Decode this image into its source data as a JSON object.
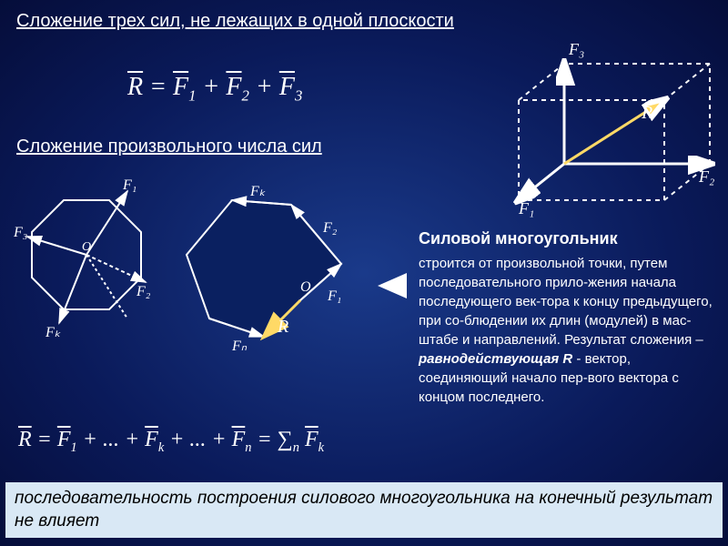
{
  "heading1": "Сложение трех сил, не лежащих в одной плоскости",
  "heading2": "Сложение произвольного числа сил",
  "formula1_html": "<span class='overline'>R</span> = <span class='overline'>F</span><span class='sub'>1</span> + <span class='overline'>F</span><span class='sub'>2</span> + <span class='overline'>F</span><span class='sub'>3</span>",
  "formula2_html": "<span class='overline'>R</span> = <span class='overline'>F</span><span class='sub'>1</span> + ... + <span class='overline'>F</span><span class='sub'>k</span> + ... + <span class='overline'>F</span><span class='sub'>n</span> = &sum;<span class='sub'>n</span> <span class='overline'>F</span><span class='sub'>k</span>",
  "body": {
    "title": "Силовой многоугольник",
    "text": "строится от произвольной точки, путем последовательного прило-жения начала последующего век-тора к концу предыдущего, при со-блюдении их длин (модулей) в мас-штабе и направлений. Результат сложения – <b><i>равнодействующая R</i></b> - вектор, соединяющий начало пер-вого вектора с концом последнего."
  },
  "footer": "последовательность построения силового многоугольника на конечный результат не влияет",
  "cube": {
    "labels": {
      "F1": "F₁",
      "F2": "F₂",
      "F3": "F₃",
      "R": "R"
    },
    "colors": {
      "solid": "#ffffff",
      "dashed": "#ffffff",
      "R": "#ffd966"
    }
  },
  "octagon": {
    "labels": [
      "F₁",
      "F₂",
      "F₃",
      "Fₖ"
    ],
    "center": "O",
    "stroke": "#ffffff"
  },
  "polygon": {
    "labels": [
      "F₁",
      "F₂",
      "Fₖ",
      "Fₙ",
      "R"
    ],
    "center": "O",
    "fill": "#0a2060",
    "stroke": "#ffffff",
    "R_color": "#ffd966"
  },
  "style": {
    "bg_center": "#1a3a8a",
    "bg_edge": "#050d3a",
    "heading_fontsize": 20,
    "formula_fontsize": 28,
    "body_fontsize": 15,
    "footer_bg": "#d9e8f5",
    "footer_color": "#000000",
    "footer_fontsize": 19
  }
}
